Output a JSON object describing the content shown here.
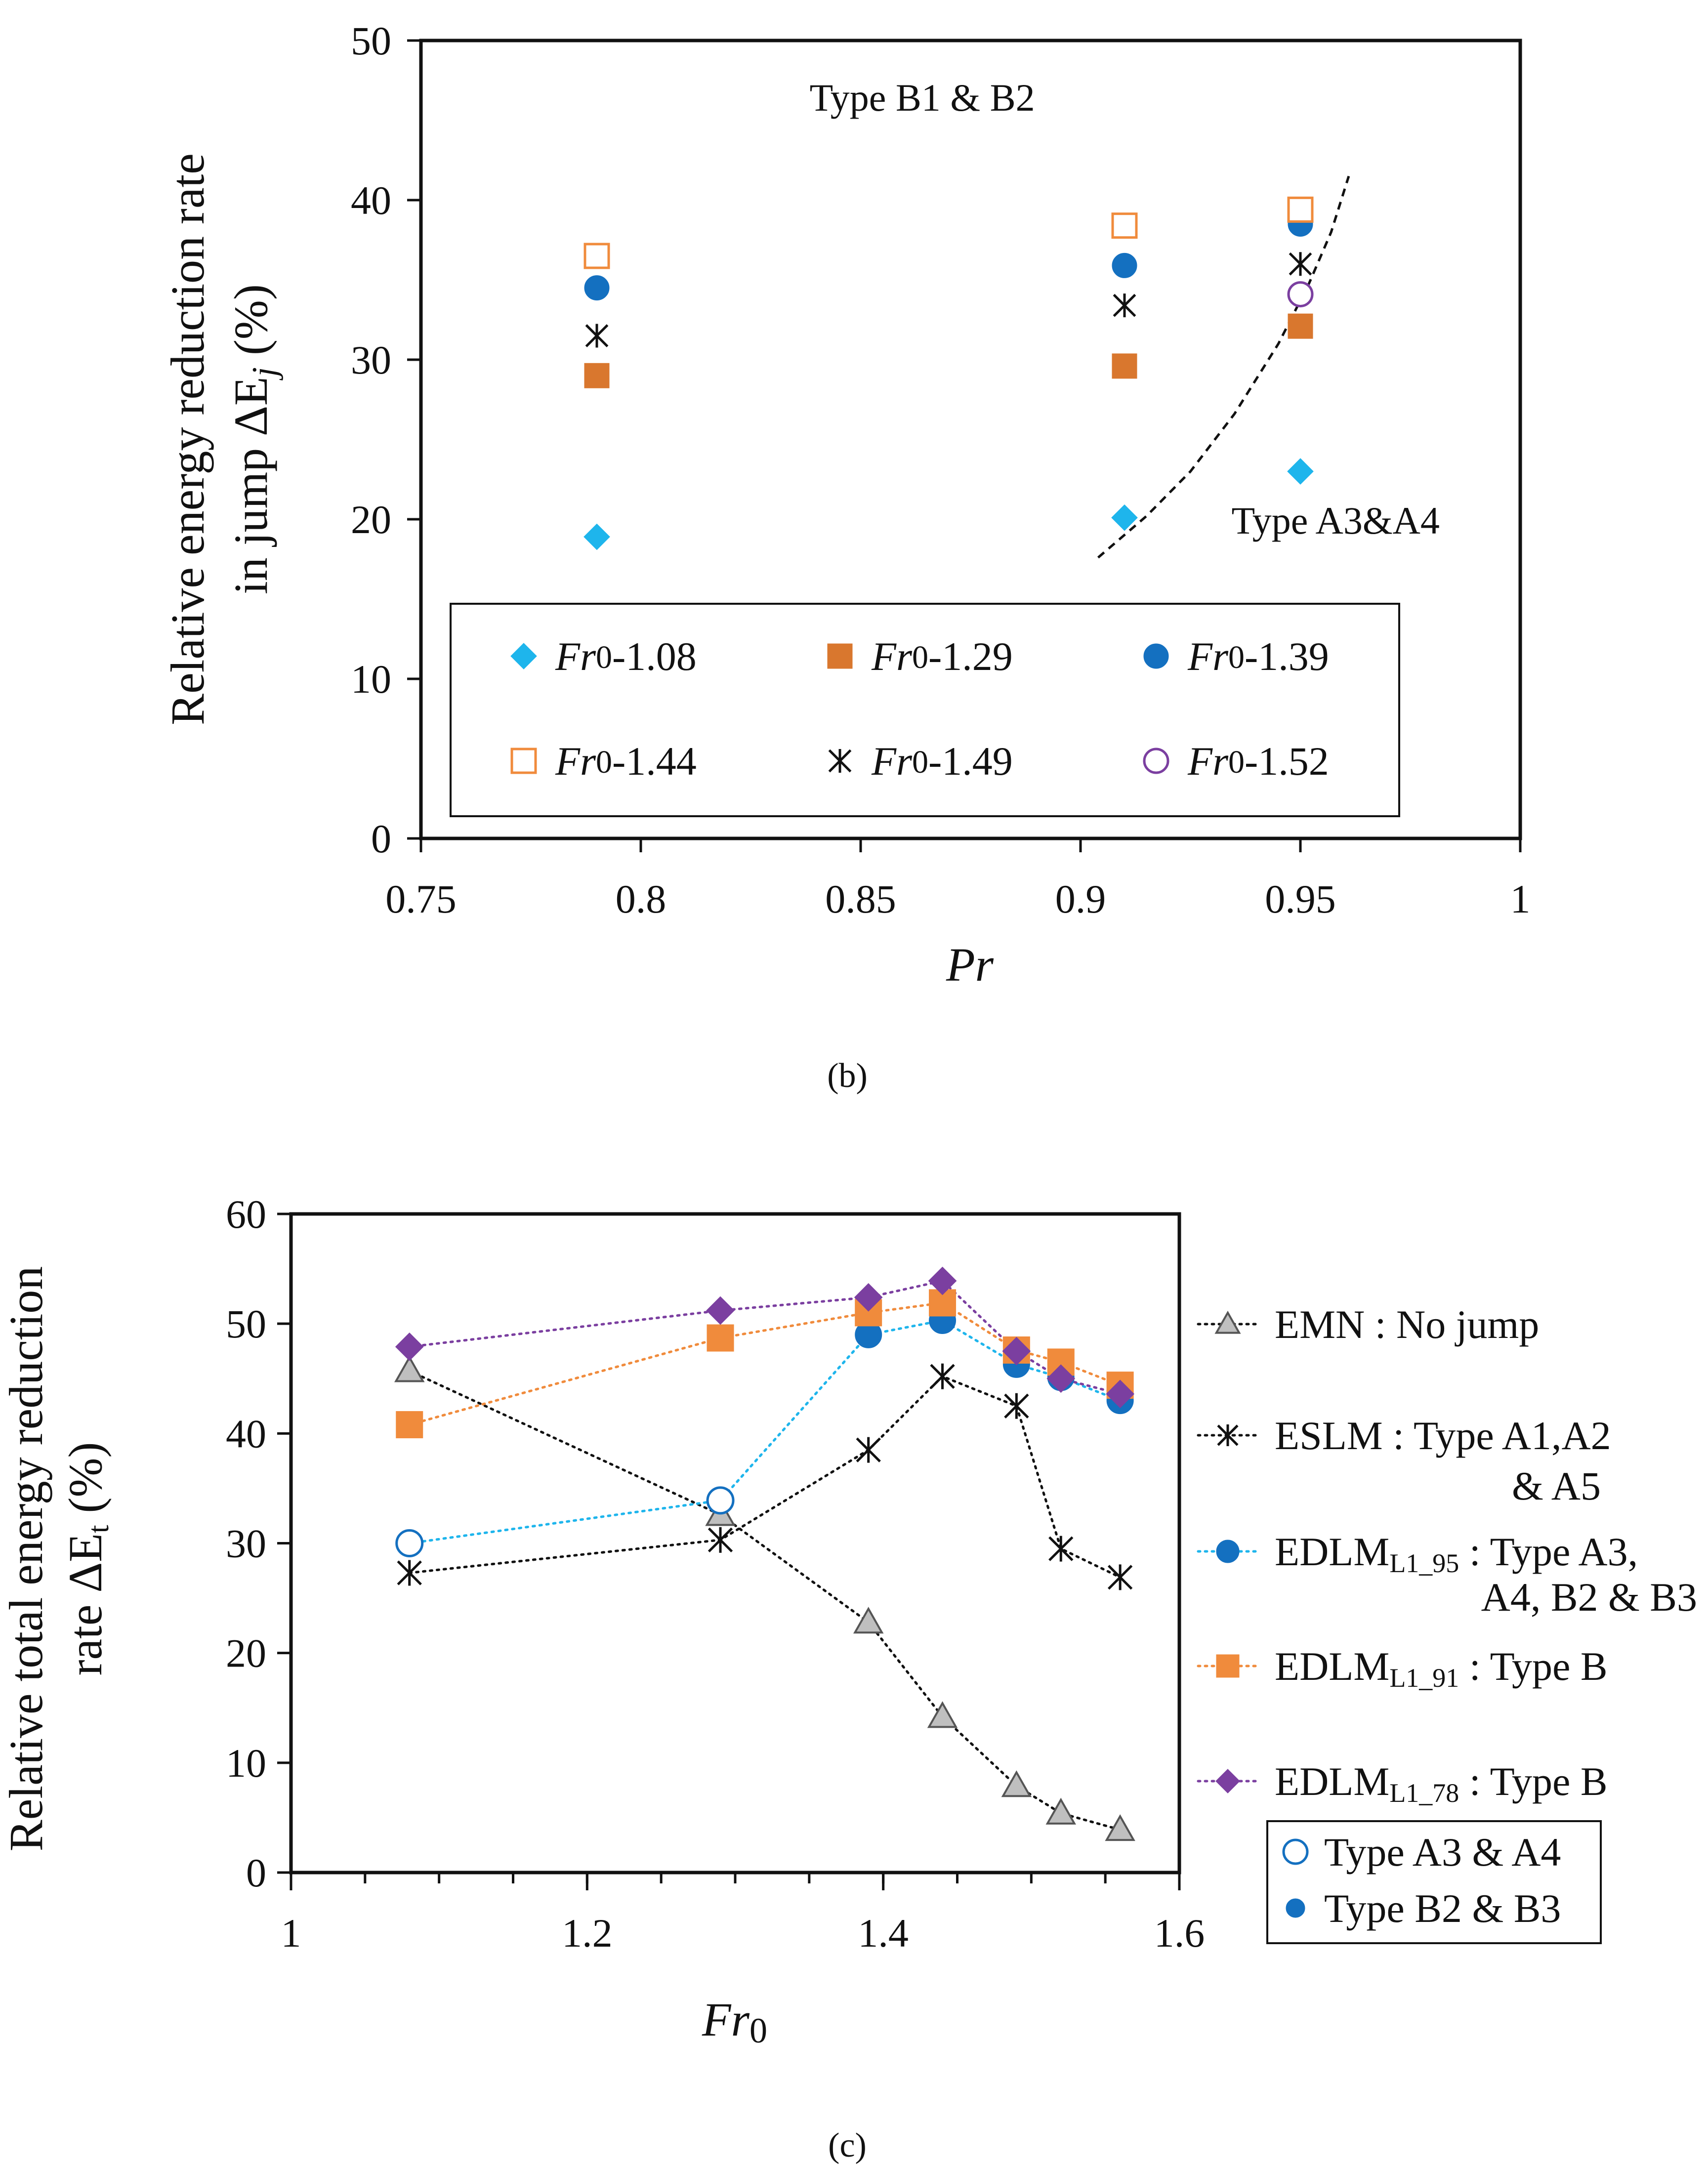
{
  "figure_b_caption": "(b)",
  "figure_c_caption": "(c)",
  "colors": {
    "light_blue": "#1EB5EC",
    "orange_dark": "#D9772E",
    "blue": "#1470C0",
    "orange_light": "#F08B3C",
    "purple": "#7B3FA0",
    "gray": "#BFBFBF",
    "black": "#111111"
  },
  "chart_data": [
    {
      "id": "b",
      "type": "scatter",
      "title": "",
      "xlabel": "Pr",
      "ylabel_line1": "Relative energy reduction rate",
      "ylabel_line2": "in jump ΔE",
      "ylabel_sub": "j",
      "ylabel_unit": " (%)",
      "xlim": [
        0.75,
        1.0
      ],
      "ylim": [
        0,
        50
      ],
      "xticks": [
        0.75,
        0.8,
        0.85,
        0.9,
        0.95,
        1.0
      ],
      "xtick_labels": [
        "0.75",
        "0.8",
        "0.85",
        "0.9",
        "0.95",
        "1"
      ],
      "yticks": [
        0,
        10,
        20,
        30,
        40,
        50
      ],
      "ytick_labels": [
        "0",
        "10",
        "20",
        "30",
        "40",
        "50"
      ],
      "grid": false,
      "annotations": [
        {
          "text": "Type B1 & B2",
          "x": 0.864,
          "y": 45.6
        },
        {
          "text": "Type A3&A4",
          "x": 0.958,
          "y": 19.1
        }
      ],
      "boundary_curve": {
        "style": "dashed",
        "x": [
          0.904,
          0.915,
          0.925,
          0.935,
          0.945,
          0.952,
          0.957,
          0.961
        ],
        "y": [
          17.6,
          20.2,
          23.0,
          26.6,
          31.0,
          34.8,
          38.0,
          41.5
        ]
      },
      "series": [
        {
          "name": "Fr0-1.08",
          "legend_pre": "Fr",
          "legend_sub": "0",
          "legend_post": "-1.08",
          "marker": "diamond",
          "color": "#1EB5EC",
          "filled": true,
          "x": [
            0.79,
            0.91,
            0.95
          ],
          "y": [
            18.9,
            20.1,
            23.0
          ]
        },
        {
          "name": "Fr0-1.29",
          "legend_pre": "Fr",
          "legend_sub": "0",
          "legend_post": "-1.29",
          "marker": "square",
          "color": "#D9772E",
          "filled": true,
          "x": [
            0.79,
            0.91,
            0.95
          ],
          "y": [
            29.0,
            29.6,
            32.1
          ]
        },
        {
          "name": "Fr0-1.39",
          "legend_pre": "Fr",
          "legend_sub": "0",
          "legend_post": "-1.39",
          "marker": "circle",
          "color": "#1470C0",
          "filled": true,
          "x": [
            0.79,
            0.91,
            0.95
          ],
          "y": [
            34.5,
            35.9,
            38.5
          ]
        },
        {
          "name": "Fr0-1.44",
          "legend_pre": "Fr",
          "legend_sub": "0",
          "legend_post": "-1.44",
          "marker": "square",
          "color": "#F08B3C",
          "filled": false,
          "x": [
            0.79,
            0.91,
            0.95
          ],
          "y": [
            36.5,
            38.4,
            39.4
          ]
        },
        {
          "name": "Fr0-1.49",
          "legend_pre": "Fr",
          "legend_sub": "0",
          "legend_post": "-1.49",
          "marker": "asterisk",
          "color": "#111111",
          "filled": false,
          "x": [
            0.79,
            0.91,
            0.95
          ],
          "y": [
            31.5,
            33.4,
            36.0
          ]
        },
        {
          "name": "Fr0-1.52",
          "legend_pre": "Fr",
          "legend_sub": "0",
          "legend_post": "-1.52",
          "marker": "circle",
          "color": "#7B3FA0",
          "filled": false,
          "x": [
            0.95
          ],
          "y": [
            34.1
          ]
        }
      ]
    },
    {
      "id": "c",
      "type": "line",
      "title": "",
      "xlabel": "Fr",
      "xlabel_sub": "0",
      "ylabel_line1": "Relative total energy reduction",
      "ylabel_line2": "rate ΔE",
      "ylabel_sub": "t",
      "ylabel_unit": " (%)",
      "xlim": [
        1.0,
        1.6
      ],
      "ylim": [
        0,
        60
      ],
      "xticks": [
        1.0,
        1.2,
        1.4,
        1.6
      ],
      "xtick_labels": [
        "1",
        "1.2",
        "1.4",
        "1.6"
      ],
      "yticks": [
        0,
        10,
        20,
        30,
        40,
        50,
        60
      ],
      "ytick_labels": [
        "0",
        "10",
        "20",
        "30",
        "40",
        "50",
        "60"
      ],
      "grid": false,
      "series": [
        {
          "name": "EMN : No jump",
          "legend_text": "EMN : No jump",
          "legend_lines": [
            "EMN : No jump"
          ],
          "marker": "triangle",
          "color": "#BFBFBF",
          "line_color": "#111111",
          "x": [
            1.08,
            1.29,
            1.39,
            1.44,
            1.49,
            1.52,
            1.56
          ],
          "y": [
            45.7,
            32.6,
            22.8,
            14.2,
            7.9,
            5.4,
            3.9
          ]
        },
        {
          "name": "ESLM : Type A1,A2 & A5",
          "legend_lines": [
            "ESLM : Type A1,A2",
            "& A5"
          ],
          "marker": "asterisk",
          "color": "#111111",
          "line_color": "#111111",
          "x": [
            1.08,
            1.29,
            1.39,
            1.44,
            1.49,
            1.52,
            1.56
          ],
          "y": [
            27.3,
            30.3,
            38.5,
            45.2,
            42.5,
            29.5,
            26.9
          ]
        },
        {
          "name": "EDLM_L1_95 : Type A3, A4, B2 & B3",
          "legend_pre": "EDLM",
          "legend_sub": "L1_95",
          "legend_post": " : Type A3,",
          "legend_line2": "A4, B2 & B3",
          "marker": "circle",
          "color": "#1470C0",
          "line_color": "#1EB5EC",
          "x": [
            1.08,
            1.29,
            1.39,
            1.44,
            1.49,
            1.52,
            1.56
          ],
          "y": [
            30.0,
            33.9,
            49.0,
            50.3,
            46.3,
            45.1,
            43.0
          ],
          "open": [
            true,
            true,
            false,
            false,
            false,
            false,
            false
          ]
        },
        {
          "name": "EDLM_L1_91 : Type B",
          "legend_pre": "EDLM",
          "legend_sub": "L1_91",
          "legend_post": " : Type B",
          "marker": "square",
          "color": "#F08B3C",
          "line_color": "#F08B3C",
          "x": [
            1.08,
            1.29,
            1.39,
            1.44,
            1.49,
            1.52,
            1.56
          ],
          "y": [
            40.8,
            48.7,
            51.0,
            51.9,
            47.6,
            46.5,
            44.4
          ]
        },
        {
          "name": "EDLM_L1_78 : Type B",
          "legend_pre": "EDLM",
          "legend_sub": "L1_78",
          "legend_post": " : Type B",
          "marker": "diamond",
          "color": "#7B3FA0",
          "line_color": "#7B3FA0",
          "x": [
            1.08,
            1.29,
            1.39,
            1.44,
            1.49,
            1.52,
            1.56
          ],
          "y": [
            47.9,
            51.2,
            52.4,
            53.9,
            47.5,
            45.0,
            43.6
          ]
        }
      ],
      "legend_boxed": [
        {
          "label": "Type A3 & A4",
          "marker": "circle-open",
          "color": "#1470C0"
        },
        {
          "label": "Type B2 & B3",
          "marker": "circle-filled",
          "color": "#1470C0"
        }
      ]
    }
  ]
}
